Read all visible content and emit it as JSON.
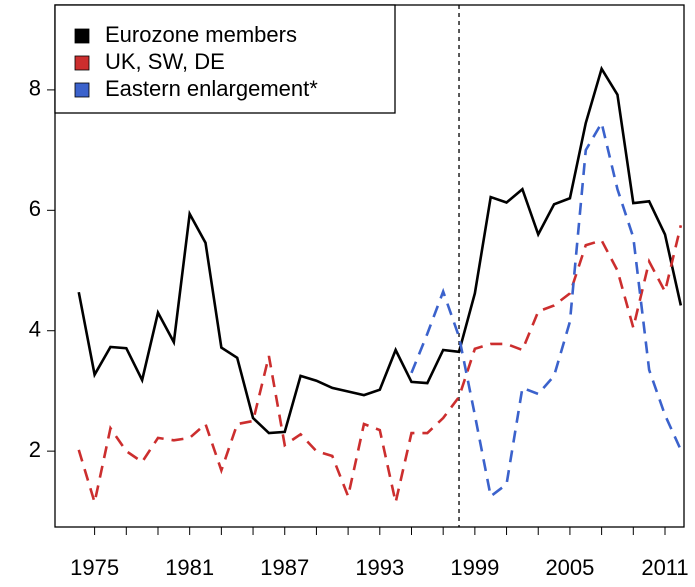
{
  "chart_data": {
    "type": "line",
    "x": [
      1974,
      1975,
      1976,
      1977,
      1978,
      1979,
      1980,
      1981,
      1982,
      1983,
      1984,
      1985,
      1986,
      1987,
      1988,
      1989,
      1990,
      1991,
      1992,
      1993,
      1994,
      1995,
      1996,
      1997,
      1998,
      1999,
      2000,
      2001,
      2002,
      2003,
      2004,
      2005,
      2006,
      2007,
      2008,
      2009,
      2010,
      2011,
      2012
    ],
    "series": [
      {
        "name": "Eurozone members",
        "color": "#000000",
        "dash": false,
        "values": [
          4.64,
          3.27,
          3.73,
          3.71,
          3.18,
          4.3,
          3.81,
          5.94,
          5.46,
          3.72,
          3.55,
          2.55,
          2.3,
          2.32,
          3.25,
          3.17,
          3.05,
          2.99,
          2.93,
          3.02,
          3.68,
          3.15,
          3.13,
          3.68,
          3.65,
          4.62,
          6.22,
          6.13,
          6.35,
          5.6,
          6.1,
          6.2,
          7.45,
          8.35,
          7.92,
          6.12,
          6.15,
          5.6,
          4.42
        ]
      },
      {
        "name": "UK, SW, DE",
        "color": "#cc2e2e",
        "dash": true,
        "values": [
          2.02,
          1.15,
          2.38,
          2.0,
          1.82,
          2.22,
          2.18,
          2.22,
          2.45,
          1.68,
          2.45,
          2.5,
          3.58,
          2.1,
          2.28,
          2.0,
          1.92,
          1.25,
          2.45,
          2.35,
          1.15,
          2.3,
          2.3,
          2.55,
          2.9,
          3.7,
          3.78,
          3.78,
          3.68,
          4.32,
          4.42,
          4.62,
          5.42,
          5.5,
          5.0,
          4.05,
          5.15,
          4.65,
          5.75
        ]
      },
      {
        "name": "Eastern enlargement*",
        "color": "#3b62cc",
        "dash": true,
        "values": [
          null,
          null,
          null,
          null,
          null,
          null,
          null,
          null,
          null,
          null,
          null,
          null,
          null,
          null,
          null,
          null,
          null,
          null,
          null,
          null,
          null,
          3.3,
          3.95,
          4.65,
          3.9,
          2.6,
          1.25,
          1.45,
          3.05,
          2.95,
          3.25,
          4.15,
          7.0,
          7.45,
          6.35,
          5.55,
          3.35,
          2.6,
          2.02
        ]
      }
    ],
    "xlim": [
      1972.5,
      2012.2
    ],
    "xticks": [
      1975,
      1981,
      1987,
      1993,
      1999,
      2005,
      2011
    ],
    "xticks_minor": [
      1977,
      1979,
      1983,
      1985,
      1989,
      1991,
      1995,
      1997,
      2001,
      2003,
      2007,
      2009
    ],
    "ylim": [
      0.74,
      9.41
    ],
    "yticks": [
      2,
      4,
      6,
      8
    ],
    "vline": 1998,
    "legend": "top-left"
  }
}
